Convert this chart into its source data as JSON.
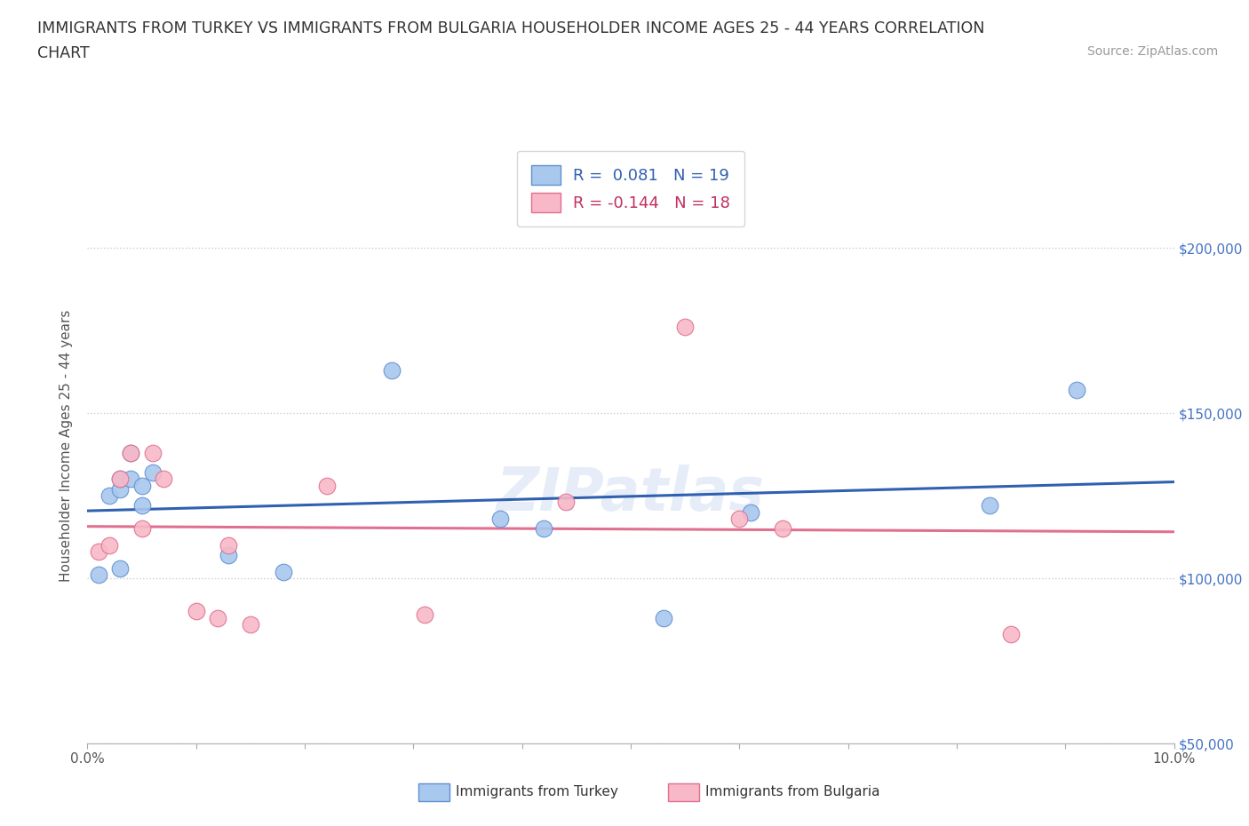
{
  "title_line1": "IMMIGRANTS FROM TURKEY VS IMMIGRANTS FROM BULGARIA HOUSEHOLDER INCOME AGES 25 - 44 YEARS CORRELATION",
  "title_line2": "CHART",
  "source": "Source: ZipAtlas.com",
  "ylabel": "Householder Income Ages 25 - 44 years",
  "xlim": [
    0.0,
    0.1
  ],
  "ylim": [
    50000,
    230000
  ],
  "xticks": [
    0.0,
    0.01,
    0.02,
    0.03,
    0.04,
    0.05,
    0.06,
    0.07,
    0.08,
    0.09,
    0.1
  ],
  "xticklabels": [
    "0.0%",
    "",
    "",
    "",
    "",
    "",
    "",
    "",
    "",
    "",
    "10.0%"
  ],
  "ytick_positions": [
    50000,
    100000,
    150000,
    200000
  ],
  "ytick_labels": [
    "$50,000",
    "$100,000",
    "$150,000",
    "$200,000"
  ],
  "turkey_color": "#a8c8ee",
  "turkey_edge_color": "#6090d0",
  "bulgaria_color": "#f8b8c8",
  "bulgaria_edge_color": "#e07090",
  "turkey_line_color": "#3060b0",
  "bulgaria_line_color": "#e07090",
  "right_label_color": "#4472c4",
  "turkey_R": 0.081,
  "turkey_N": 19,
  "bulgaria_R": -0.144,
  "bulgaria_N": 18,
  "turkey_x": [
    0.001,
    0.002,
    0.003,
    0.003,
    0.004,
    0.004,
    0.005,
    0.005,
    0.006,
    0.013,
    0.018,
    0.028,
    0.038,
    0.042,
    0.053,
    0.061,
    0.083,
    0.091,
    0.003
  ],
  "turkey_y": [
    101000,
    125000,
    127000,
    130000,
    130000,
    138000,
    122000,
    128000,
    132000,
    107000,
    102000,
    163000,
    118000,
    115000,
    88000,
    120000,
    122000,
    157000,
    103000
  ],
  "bulgaria_x": [
    0.001,
    0.002,
    0.003,
    0.004,
    0.005,
    0.006,
    0.007,
    0.01,
    0.012,
    0.013,
    0.015,
    0.022,
    0.031,
    0.044,
    0.055,
    0.06,
    0.064,
    0.085
  ],
  "bulgaria_y": [
    108000,
    110000,
    130000,
    138000,
    115000,
    138000,
    130000,
    90000,
    88000,
    110000,
    86000,
    128000,
    89000,
    123000,
    176000,
    118000,
    115000,
    83000
  ],
  "background_color": "#ffffff",
  "grid_color": "#cccccc",
  "watermark": "ZIPatlas",
  "dot_size": 180
}
